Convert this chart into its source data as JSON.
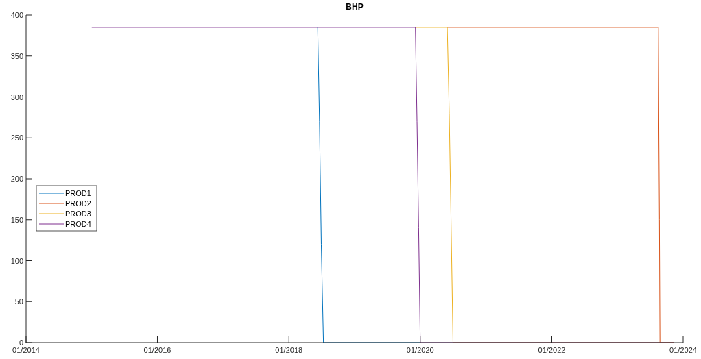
{
  "chart_data": {
    "type": "line",
    "title": "BHP",
    "xlim": [
      "2014-01",
      "2024-01"
    ],
    "xticks": [
      {
        "value": "2014-01",
        "label": "01/2014"
      },
      {
        "value": "2016-01",
        "label": "01/2016"
      },
      {
        "value": "2018-01",
        "label": "01/2018"
      },
      {
        "value": "2020-01",
        "label": "01/2020"
      },
      {
        "value": "2022-01",
        "label": "01/2022"
      },
      {
        "value": "2024-01",
        "label": "01/2024"
      }
    ],
    "ylim": [
      0,
      400
    ],
    "yticks": [
      0,
      50,
      100,
      150,
      200,
      250,
      300,
      350,
      400
    ],
    "legend": "left",
    "grid": false,
    "series": [
      {
        "name": "PROD1",
        "color": "#0072bd",
        "x": [
          "2018-06-10",
          "2018-06-20",
          "2018-06-30",
          "2018-07-12",
          "2020-01-01"
        ],
        "values": [
          385,
          270,
          120,
          0,
          0
        ]
      },
      {
        "name": "PROD2",
        "color": "#d95319",
        "x": [
          "2020-05-30",
          "2023-08-16",
          "2023-08-19",
          "2023-08-22",
          "2023-08-25",
          "2023-11-10"
        ],
        "values": [
          385,
          385,
          250,
          150,
          0,
          0
        ]
      },
      {
        "name": "PROD3",
        "color": "#edb120",
        "x": [
          "2019-12-05",
          "2020-05-30",
          "2020-06-10",
          "2020-06-20",
          "2020-07-01",
          "2023-11-10"
        ],
        "values": [
          385,
          385,
          280,
          150,
          0,
          0
        ]
      },
      {
        "name": "PROD4",
        "color": "#7e2f8e",
        "x": [
          "2015-01-01",
          "2019-12-05",
          "2019-12-14",
          "2019-12-23",
          "2020-01-01",
          "2023-11-10"
        ],
        "values": [
          385,
          385,
          270,
          140,
          0,
          0
        ]
      }
    ]
  }
}
